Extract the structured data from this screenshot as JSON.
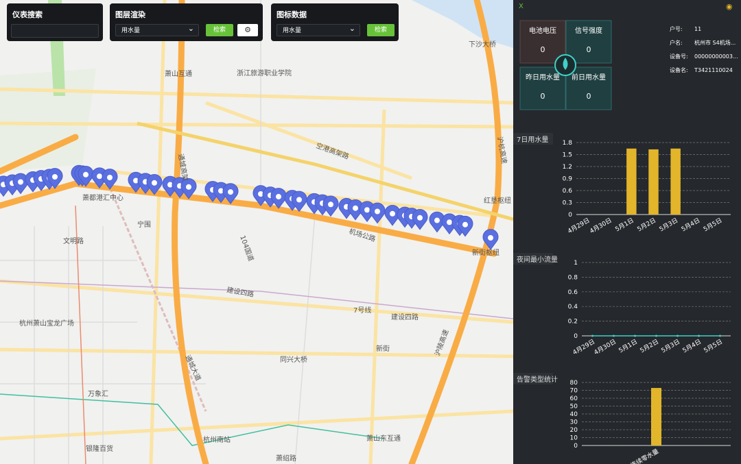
{
  "toolbar": [
    {
      "title": "仪表搜索"
    },
    {
      "title": "图层渲染",
      "select": "用水量",
      "button": "检索"
    },
    {
      "title": "图标数据",
      "select": "用水量",
      "button": "检索"
    }
  ],
  "map": {
    "labels": [
      "下沙大桥",
      "萧山互通",
      "浙江旅游职业学院",
      "空港高架路",
      "萧都港汇中心",
      "宁围",
      "文明路",
      "机场公路",
      "红垦枢纽",
      "新街枢纽",
      "104国道",
      "建设四路",
      "建设四路",
      "7号线",
      "杭州萧山宝龙广场",
      "同兴大桥",
      "新街",
      "万象汇",
      "银隆百货",
      "杭州南站",
      "萧山东互通",
      "萧绍路",
      "通城大道",
      "沪陵高速",
      "通城高架",
      "沪杭高速"
    ]
  },
  "side_panel": {
    "close": "X",
    "cards": [
      {
        "label": "电池电压",
        "value": 0
      },
      {
        "label": "信号强度",
        "value": 0
      },
      {
        "label": "昨日用水量",
        "value": 0
      },
      {
        "label": "前日用水量",
        "value": 0
      }
    ],
    "info": [
      {
        "key": "户号:",
        "value": "11"
      },
      {
        "key": "户名:",
        "value": "杭州市 S4机场..."
      },
      {
        "key": "设备号:",
        "value": "00000000003..."
      },
      {
        "key": "设备名:",
        "value": "T3421110024"
      }
    ],
    "charts": [
      {
        "type": "bar",
        "title": "7日用水量",
        "categories": [
          "4月29日",
          "4月30日",
          "5月1日",
          "5月2日",
          "5月3日",
          "5月4日",
          "5月5日"
        ],
        "values": [
          0,
          0,
          1.65,
          1.63,
          1.65,
          0,
          0
        ],
        "color": "#e2b52a",
        "ylim": [
          0,
          1.8
        ],
        "yticks": [
          0,
          0.3,
          0.6,
          0.9,
          1.2,
          1.5,
          1.8
        ],
        "grid": true
      },
      {
        "type": "line",
        "title": "夜间最小流量",
        "categories": [
          "4月29日",
          "4月30日",
          "5月1日",
          "5月2日",
          "5月3日",
          "5月4日",
          "5月5日"
        ],
        "values": [
          0,
          0,
          0,
          0,
          0,
          0,
          0
        ],
        "color": "#3fd1c7",
        "ylim": [
          0,
          1
        ],
        "yticks": [
          0,
          0.2,
          0.4,
          0.6,
          0.8,
          1
        ],
        "grid": true
      },
      {
        "type": "bar",
        "title": "告警类型统计",
        "categories": [
          "连续零水量"
        ],
        "values": [
          73
        ],
        "color": "#e2b52a",
        "ylim": [
          0,
          80
        ],
        "yticks": [
          0,
          10,
          20,
          30,
          40,
          50,
          60,
          70,
          80
        ],
        "grid": true
      }
    ]
  }
}
